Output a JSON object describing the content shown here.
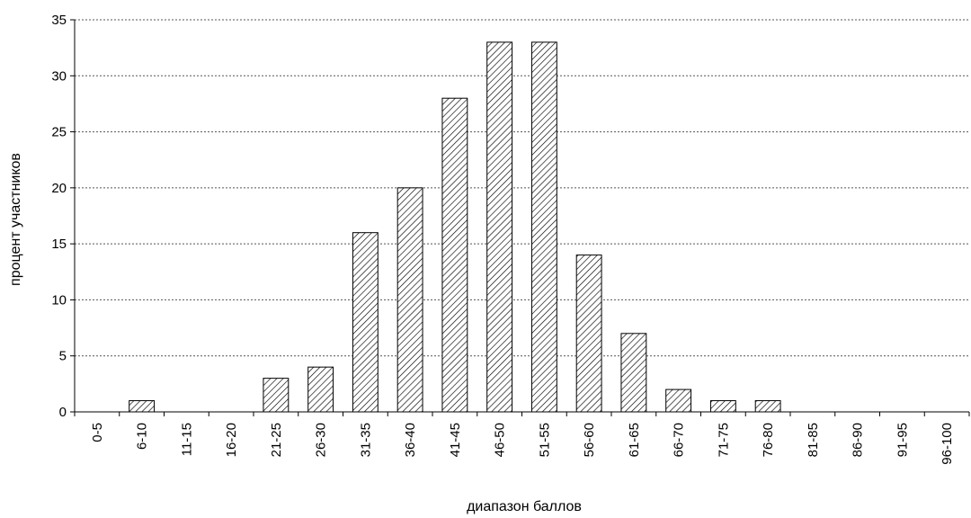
{
  "chart_data": {
    "type": "bar",
    "categories": [
      "0-5",
      "6-10",
      "11-15",
      "16-20",
      "21-25",
      "26-30",
      "31-35",
      "36-40",
      "41-45",
      "46-50",
      "51-55",
      "56-60",
      "61-65",
      "66-70",
      "71-75",
      "76-80",
      "81-85",
      "86-90",
      "91-95",
      "96-100"
    ],
    "values": [
      0,
      1,
      0,
      0,
      3,
      4,
      16,
      20,
      28,
      33,
      33,
      14,
      7,
      2,
      1,
      1,
      0,
      0,
      0,
      0
    ],
    "title": "",
    "xlabel": "диапазон баллов",
    "ylabel": "процент участников",
    "ylim": [
      0,
      35
    ],
    "yticks": [
      0,
      5,
      10,
      15,
      20,
      25,
      30,
      35
    ],
    "grid": "horizontal-dashed",
    "bar_pattern": "diagonal-hatch",
    "bar_fill_color": "#ffffff",
    "bar_stroke_color": "#000000",
    "grid_color": "#555555"
  }
}
